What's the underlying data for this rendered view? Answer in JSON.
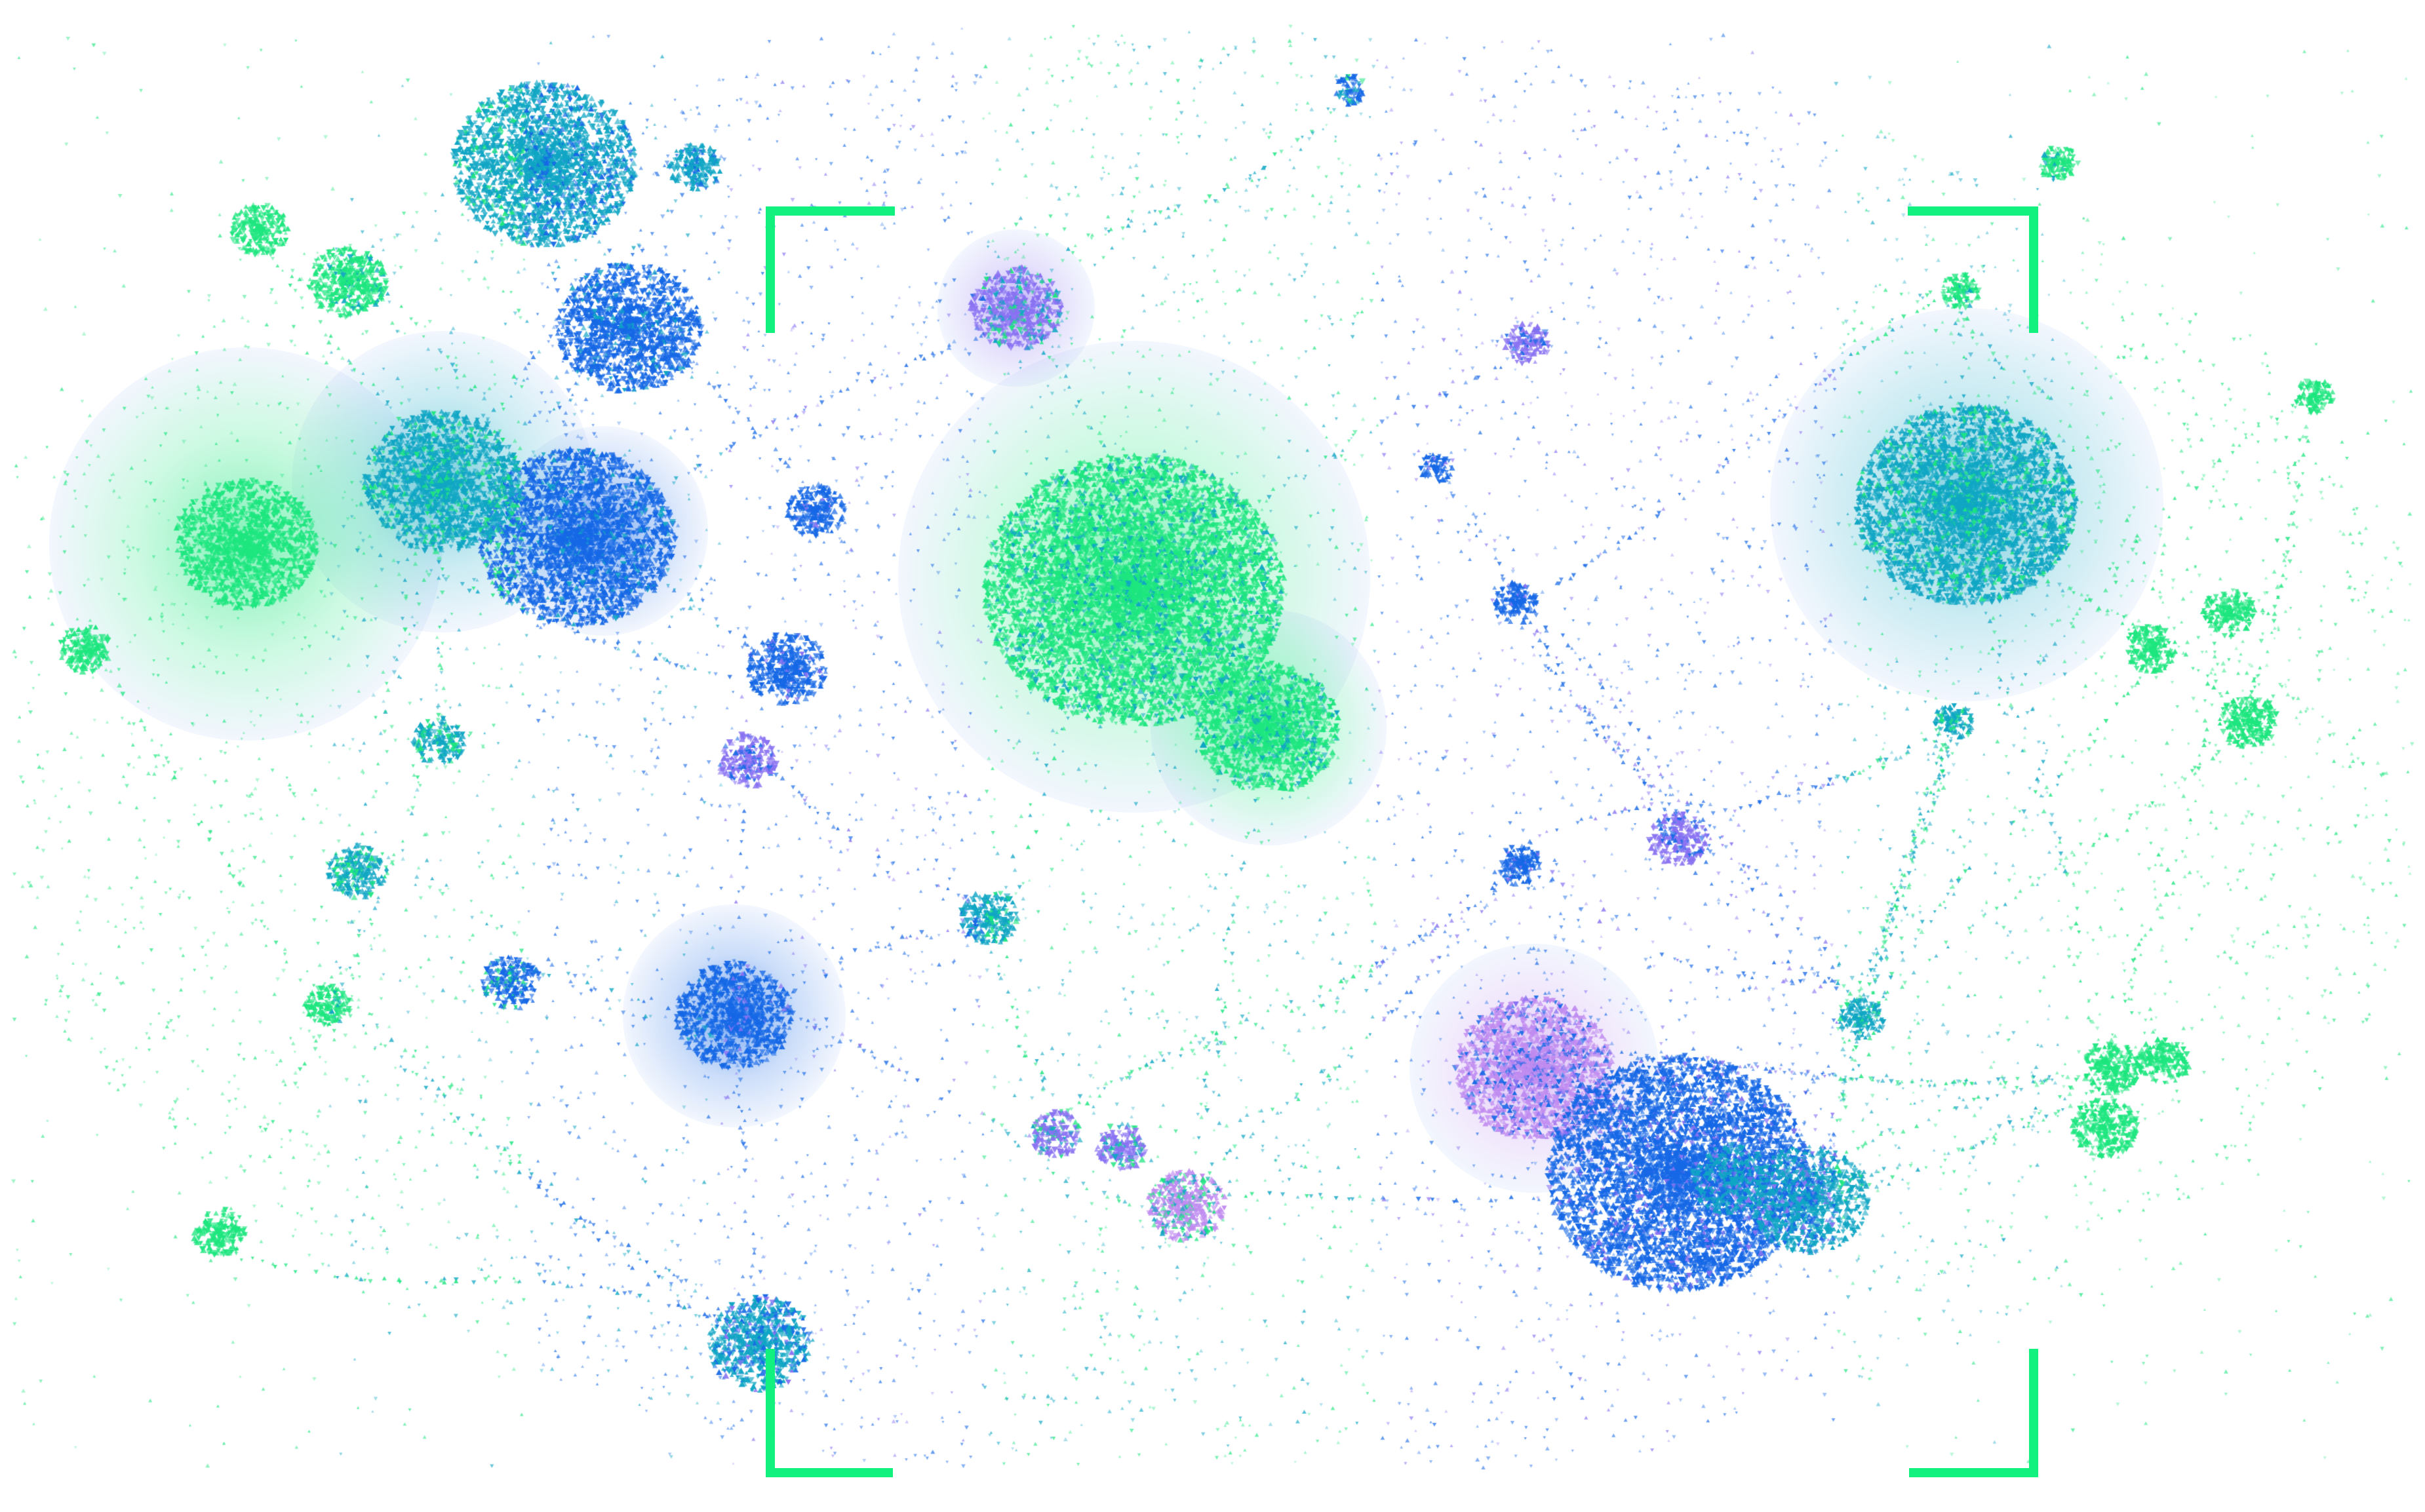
{
  "palette": {
    "background": "#ffffff",
    "bracket": "#12f07e",
    "green": "#1ee67f",
    "teal": "#10a6c4",
    "blue": "#1668e6",
    "violet": "#8a72f2",
    "lavender": "#c08cf0"
  },
  "frame": {
    "icon": "viewfinder-corners",
    "corners": [
      "top-left",
      "top-right",
      "bottom-left",
      "bottom-right"
    ]
  },
  "clusters": [
    {
      "kind": "cloud-glow",
      "color": "teal"
    },
    {
      "kind": "cloud-glow",
      "color": "green"
    },
    {
      "kind": "cloud-glow",
      "color": "blue"
    },
    {
      "kind": "cloud-glow",
      "color": "violet"
    }
  ]
}
